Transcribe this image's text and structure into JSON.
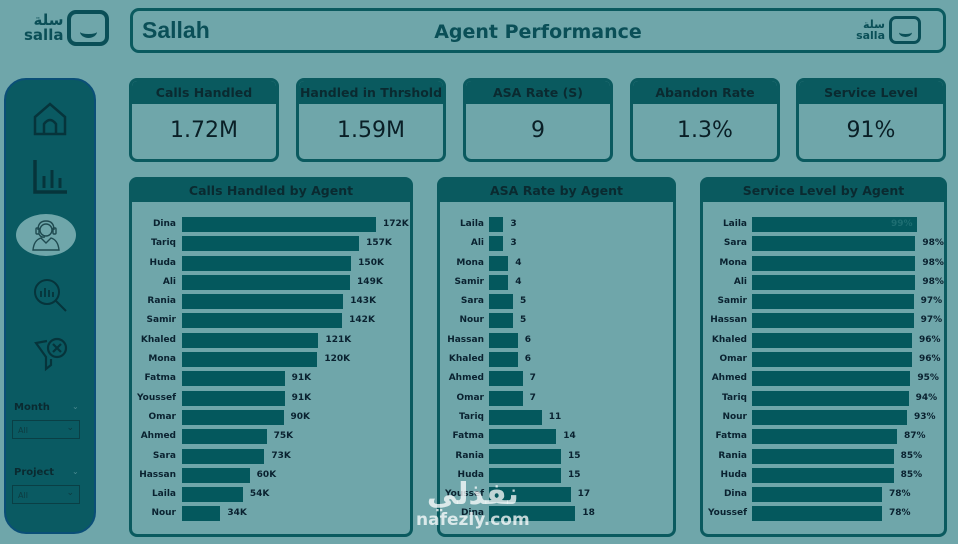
{
  "logo": {
    "arabic": "سلة",
    "latin": "salla"
  },
  "header": {
    "brand": "Sallah",
    "title": "Agent Performance"
  },
  "sidebar": {
    "nav": [
      {
        "name": "home",
        "icon": "home-icon",
        "active": false
      },
      {
        "name": "bar-chart",
        "icon": "bar-chart-icon",
        "active": false
      },
      {
        "name": "agent",
        "icon": "agent-headset-icon",
        "active": true
      },
      {
        "name": "analysis",
        "icon": "chart-search-icon",
        "active": false
      },
      {
        "name": "clear-filters",
        "icon": "filter-clear-icon",
        "active": false
      }
    ],
    "slicers": [
      {
        "label": "Month",
        "value": "All"
      },
      {
        "label": "Project",
        "value": "All"
      }
    ]
  },
  "kpis": [
    {
      "label": "Calls Handled",
      "value": "1.72M"
    },
    {
      "label": "Handled in Thrshold",
      "value": "1.59M"
    },
    {
      "label": "ASA Rate (S)",
      "value": "9"
    },
    {
      "label": "Abandon Rate",
      "value": "1.3%"
    },
    {
      "label": "Service Level",
      "value": "91%"
    }
  ],
  "chart_data": [
    {
      "type": "bar",
      "orientation": "horizontal",
      "title": "Calls Handled by Agent",
      "categories": [
        "Dina",
        "Tariq",
        "Huda",
        "Ali",
        "Rania",
        "Samir",
        "Khaled",
        "Mona",
        "Fatma",
        "Youssef",
        "Omar",
        "Ahmed",
        "Sara",
        "Hassan",
        "Laila",
        "Nour"
      ],
      "values": [
        172000,
        157000,
        150000,
        149000,
        143000,
        142000,
        121000,
        120000,
        91000,
        91000,
        90000,
        75000,
        73000,
        60000,
        54000,
        34000
      ],
      "labels": [
        "172K",
        "157K",
        "150K",
        "149K",
        "143K",
        "142K",
        "121K",
        "120K",
        "91K",
        "91K",
        "90K",
        "75K",
        "73K",
        "60K",
        "54K",
        "34K"
      ],
      "xlim": [
        0,
        172000
      ]
    },
    {
      "type": "bar",
      "orientation": "horizontal",
      "title": "ASA Rate by Agent",
      "categories": [
        "Laila",
        "Ali",
        "Mona",
        "Samir",
        "Sara",
        "Nour",
        "Hassan",
        "Khaled",
        "Ahmed",
        "Omar",
        "Tariq",
        "Fatma",
        "Rania",
        "Huda",
        "Youssef",
        "Dina"
      ],
      "values": [
        3,
        3,
        4,
        4,
        5,
        5,
        6,
        6,
        7,
        7,
        11,
        14,
        15,
        15,
        17,
        18
      ],
      "labels": [
        "3",
        "3",
        "4",
        "4",
        "5",
        "5",
        "6",
        "6",
        "7",
        "7",
        "11",
        "14",
        "15",
        "15",
        "17",
        "18"
      ],
      "xlim": [
        0,
        50
      ]
    },
    {
      "type": "bar",
      "orientation": "horizontal",
      "title": "Service Level by Agent",
      "categories": [
        "Laila",
        "Sara",
        "Mona",
        "Ali",
        "Samir",
        "Hassan",
        "Khaled",
        "Omar",
        "Ahmed",
        "Tariq",
        "Nour",
        "Fatma",
        "Rania",
        "Huda",
        "Dina",
        "Youssef"
      ],
      "values": [
        99,
        98,
        98,
        98,
        97,
        97,
        96,
        96,
        95,
        94,
        93,
        87,
        85,
        85,
        78,
        78
      ],
      "labels": [
        "99%",
        "98%",
        "98%",
        "98%",
        "97%",
        "97%",
        "96%",
        "96%",
        "95%",
        "94%",
        "93%",
        "87%",
        "85%",
        "85%",
        "78%",
        "78%"
      ],
      "xlim": [
        0,
        99
      ]
    }
  ],
  "watermark": {
    "arabic": "نفذلي",
    "latin": "nafezly.com"
  }
}
